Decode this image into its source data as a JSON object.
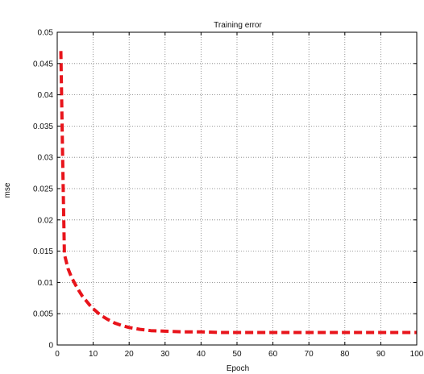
{
  "chart_data": {
    "type": "line",
    "title": "Training error",
    "xlabel": "Epoch",
    "ylabel": "mse",
    "xlim": [
      0,
      100
    ],
    "ylim": [
      0,
      0.05
    ],
    "grid": true,
    "x_ticks": [
      "0",
      "10",
      "20",
      "30",
      "40",
      "50",
      "60",
      "70",
      "80",
      "90",
      "100"
    ],
    "x_tick_values": [
      0,
      10,
      20,
      30,
      40,
      50,
      60,
      70,
      80,
      90,
      100
    ],
    "y_ticks": [
      "0",
      "0.005",
      "0.01",
      "0.015",
      "0.02",
      "0.025",
      "0.03",
      "0.035",
      "0.04",
      "0.045",
      "0.05"
    ],
    "y_tick_values": [
      0,
      0.005,
      0.01,
      0.015,
      0.02,
      0.025,
      0.03,
      0.035,
      0.04,
      0.045,
      0.05
    ],
    "series": [
      {
        "color": "#e8141b",
        "line_style": "dashed",
        "x": [
          1,
          1.5,
          2,
          3,
          4,
          5,
          6,
          7,
          8,
          9,
          10,
          12,
          14,
          16,
          18,
          20,
          23,
          26,
          30,
          35,
          40,
          45,
          50,
          60,
          70,
          80,
          90,
          100
        ],
        "y": [
          0.047,
          0.03,
          0.0145,
          0.0122,
          0.0108,
          0.0097,
          0.0087,
          0.0078,
          0.0071,
          0.0064,
          0.0058,
          0.0048,
          0.0041,
          0.0035,
          0.0031,
          0.0028,
          0.0025,
          0.0023,
          0.0022,
          0.0021,
          0.0021,
          0.002,
          0.002,
          0.002,
          0.002,
          0.002,
          0.002,
          0.002
        ]
      }
    ]
  }
}
